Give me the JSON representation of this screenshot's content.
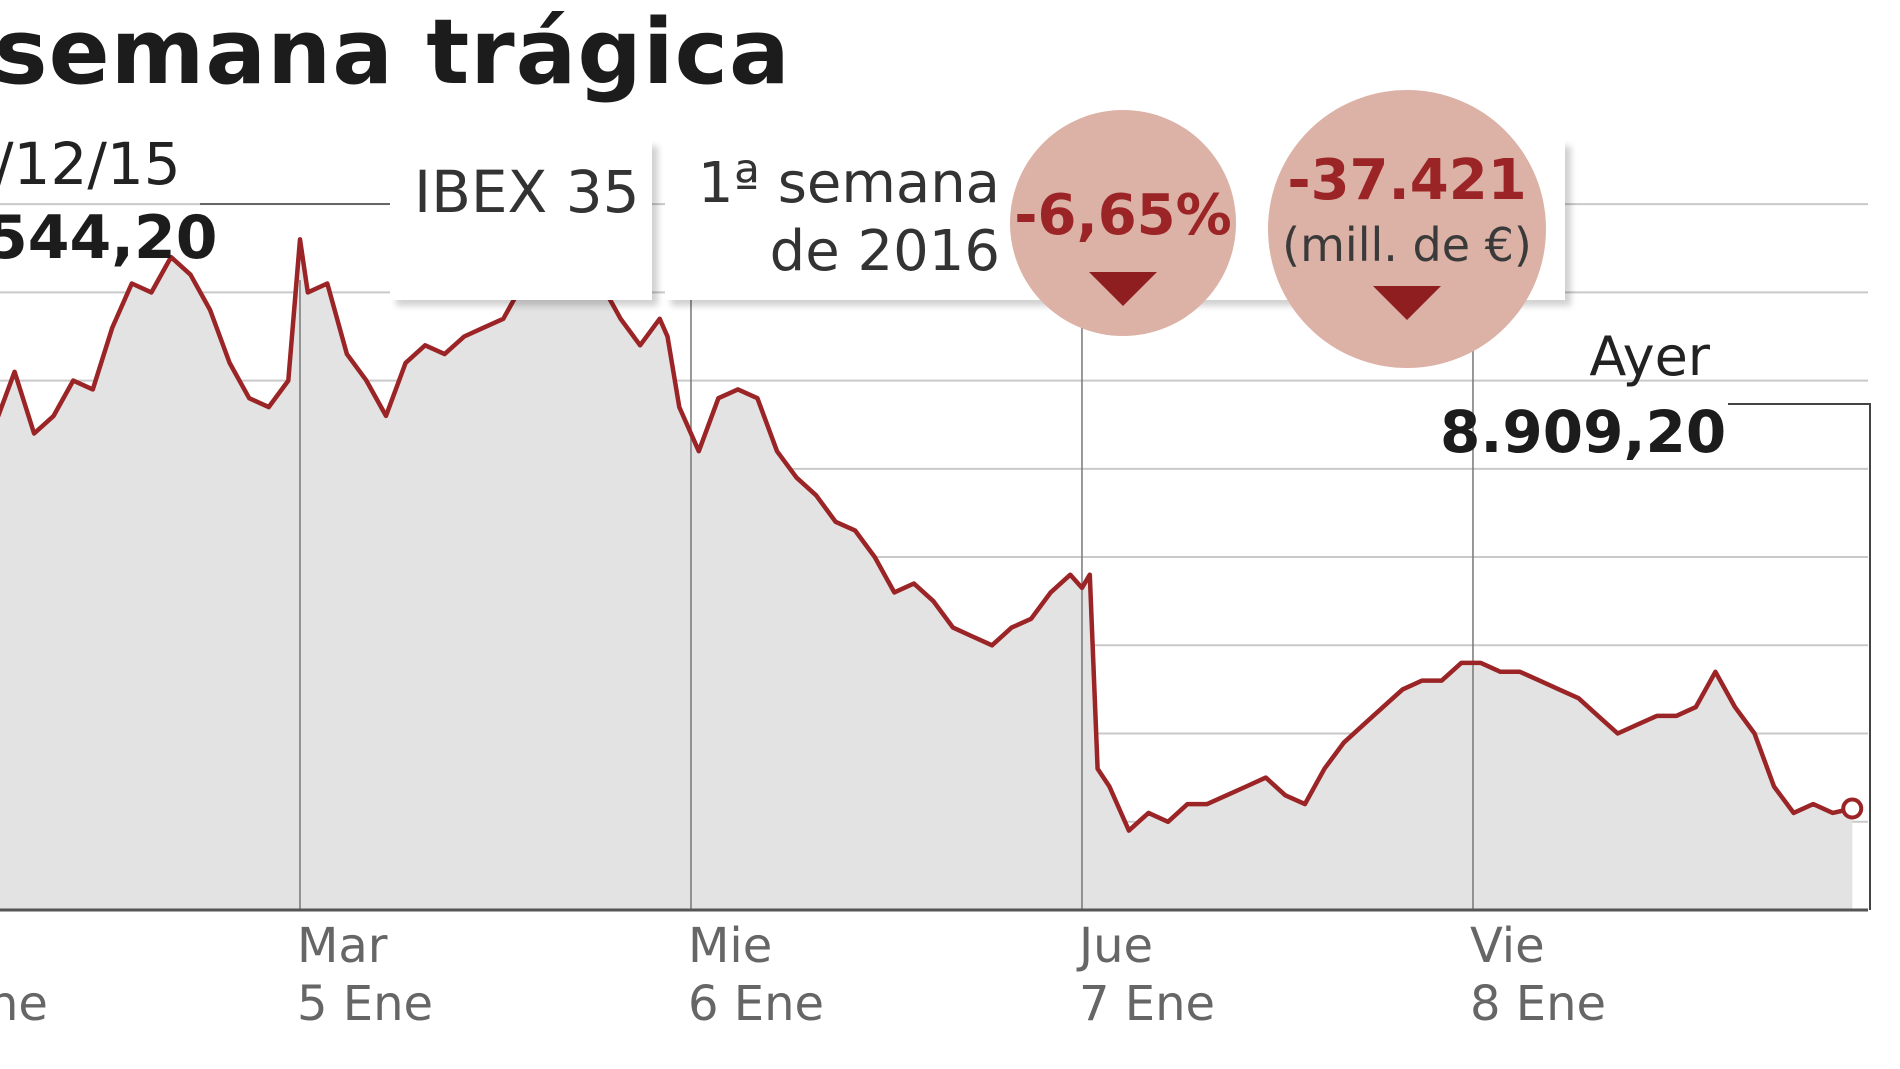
{
  "title": "semana trágica",
  "start": {
    "date_label": "/12/15",
    "value_label": "544,20"
  },
  "info": {
    "index_label": "IBEX 35",
    "period_line1": "1ª semana",
    "period_line2": "de 2016",
    "pct_change": "-6,65%",
    "cap_change": "-37.421",
    "cap_unit": "(mill. de €)"
  },
  "end": {
    "label": "Ayer",
    "value_label": "8.909,20"
  },
  "x_axis": [
    {
      "day": "",
      "date": "ne"
    },
    {
      "day": "Mar",
      "date": "5 Ene"
    },
    {
      "day": "Mie",
      "date": "6 Ene"
    },
    {
      "day": "Jue",
      "date": "7 Ene"
    },
    {
      "day": "Vie",
      "date": "8 Ene"
    }
  ],
  "colors": {
    "line": "#9b2426",
    "area": "#e3e3e4",
    "grid": "#c9c9c9",
    "circle": "#dcb1a6",
    "arrow": "#8e1e20"
  },
  "chart_data": {
    "type": "area",
    "title": "semana trágica",
    "series": [
      {
        "name": "IBEX 35",
        "points": [
          [
            0.0,
            9350
          ],
          [
            0.05,
            9410
          ],
          [
            0.1,
            9340
          ],
          [
            0.15,
            9360
          ],
          [
            0.2,
            9400
          ],
          [
            0.25,
            9390
          ],
          [
            0.3,
            9460
          ],
          [
            0.35,
            9510
          ],
          [
            0.4,
            9500
          ],
          [
            0.45,
            9540
          ],
          [
            0.5,
            9520
          ],
          [
            0.55,
            9480
          ],
          [
            0.6,
            9420
          ],
          [
            0.65,
            9380
          ],
          [
            0.7,
            9370
          ],
          [
            0.75,
            9400
          ],
          [
            0.78,
            9560
          ],
          [
            0.8,
            9500
          ],
          [
            0.85,
            9510
          ],
          [
            0.9,
            9430
          ],
          [
            0.95,
            9400
          ],
          [
            1.0,
            9360
          ],
          [
            1.05,
            9420
          ],
          [
            1.1,
            9440
          ],
          [
            1.15,
            9430
          ],
          [
            1.2,
            9450
          ],
          [
            1.25,
            9460
          ],
          [
            1.3,
            9470
          ],
          [
            1.35,
            9510
          ],
          [
            1.4,
            9520
          ],
          [
            1.45,
            9510
          ],
          [
            1.5,
            9500
          ],
          [
            1.55,
            9510
          ],
          [
            1.6,
            9470
          ],
          [
            1.65,
            9440
          ],
          [
            1.7,
            9470
          ],
          [
            1.72,
            9450
          ],
          [
            1.75,
            9370
          ],
          [
            1.8,
            9320
          ],
          [
            1.85,
            9380
          ],
          [
            1.9,
            9390
          ],
          [
            1.95,
            9380
          ],
          [
            2.0,
            9320
          ],
          [
            2.05,
            9290
          ],
          [
            2.1,
            9270
          ],
          [
            2.15,
            9240
          ],
          [
            2.2,
            9230
          ],
          [
            2.25,
            9200
          ],
          [
            2.3,
            9160
          ],
          [
            2.35,
            9170
          ],
          [
            2.4,
            9150
          ],
          [
            2.45,
            9120
          ],
          [
            2.5,
            9110
          ],
          [
            2.55,
            9100
          ],
          [
            2.6,
            9120
          ],
          [
            2.65,
            9130
          ],
          [
            2.7,
            9160
          ],
          [
            2.75,
            9180
          ],
          [
            2.78,
            9165
          ],
          [
            2.8,
            9180
          ],
          [
            2.82,
            8960
          ],
          [
            2.85,
            8940
          ],
          [
            2.9,
            8890
          ],
          [
            2.95,
            8910
          ],
          [
            3.0,
            8900
          ],
          [
            3.05,
            8920
          ],
          [
            3.1,
            8920
          ],
          [
            3.15,
            8930
          ],
          [
            3.2,
            8940
          ],
          [
            3.25,
            8950
          ],
          [
            3.3,
            8930
          ],
          [
            3.35,
            8920
          ],
          [
            3.4,
            8960
          ],
          [
            3.45,
            8990
          ],
          [
            3.5,
            9010
          ],
          [
            3.55,
            9030
          ],
          [
            3.6,
            9050
          ],
          [
            3.65,
            9060
          ],
          [
            3.7,
            9060
          ],
          [
            3.75,
            9080
          ],
          [
            3.8,
            9080
          ],
          [
            3.85,
            9070
          ],
          [
            3.9,
            9070
          ],
          [
            3.95,
            9060
          ],
          [
            4.0,
            9050
          ],
          [
            4.05,
            9040
          ],
          [
            4.1,
            9020
          ],
          [
            4.15,
            9000
          ],
          [
            4.2,
            9010
          ],
          [
            4.25,
            9020
          ],
          [
            4.3,
            9020
          ],
          [
            4.35,
            9030
          ],
          [
            4.4,
            9070
          ],
          [
            4.45,
            9030
          ],
          [
            4.5,
            9000
          ],
          [
            4.55,
            8940
          ],
          [
            4.6,
            8910
          ],
          [
            4.65,
            8920
          ],
          [
            4.7,
            8910
          ],
          [
            4.75,
            8915
          ]
        ]
      }
    ],
    "x_categories": [
      "ne",
      "Mar 5 Ene",
      "Mie 6 Ene",
      "Jue 7 Ene",
      "Vie 8 Ene"
    ],
    "x_tick_positions": [
      0,
      0.78,
      1.78,
      2.78,
      3.78
    ],
    "ylim": [
      8800,
      9650
    ],
    "y_gridlines": [
      8900,
      9000,
      9100,
      9200,
      9300,
      9400,
      9500,
      9600
    ],
    "annotations": [
      {
        "label": "Ayer",
        "value": "8.909,20"
      },
      {
        "label": "/12/15",
        "value": "544,20"
      }
    ],
    "grid": true
  }
}
